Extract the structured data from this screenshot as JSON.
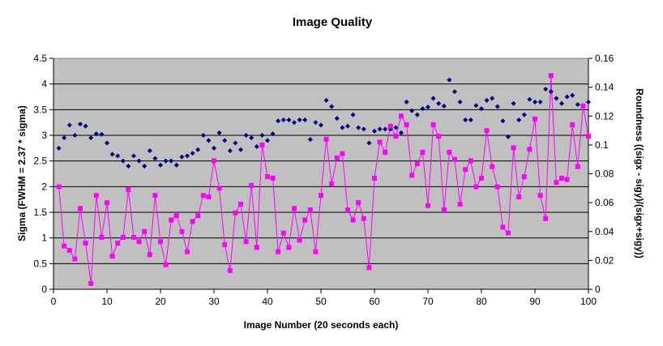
{
  "chart_data": {
    "type": "scatter",
    "title": "Image Quality",
    "xlabel": "Image Number (20 seconds each)",
    "ylabel": "Sigma (FWHM = 2.37 * sigma)",
    "y2label": "Roundness ((sigx - sigy)/(sigx+sigy))",
    "xlim": [
      0,
      100
    ],
    "ylim": [
      0,
      4.5
    ],
    "y2lim": [
      0,
      0.16
    ],
    "x_ticks": [
      0,
      10,
      20,
      30,
      40,
      50,
      60,
      70,
      80,
      90,
      100
    ],
    "y_ticks": [
      0,
      0.5,
      1,
      1.5,
      2,
      2.5,
      3,
      3.5,
      4,
      4.5
    ],
    "y2_ticks": [
      0,
      0.02,
      0.04,
      0.06,
      0.08,
      0.1,
      0.12,
      0.14,
      0.16
    ],
    "y_tick_labels": [
      "0",
      "0.5",
      "1",
      "1.5",
      "2",
      "2.5",
      "3",
      "3.5",
      "4",
      "4.5"
    ],
    "y2_tick_labels": [
      "0",
      "0.02",
      "0.04",
      "0.06",
      "0.08",
      "0.1",
      "0.12",
      "0.14",
      "0.16"
    ],
    "grid": true,
    "plot_background": "#c0c0c0",
    "series": [
      {
        "axis": "left",
        "marker": "diamond",
        "color": "#000080",
        "line": false,
        "points": [
          [
            1,
            2.75
          ],
          [
            2,
            2.95
          ],
          [
            3,
            3.2
          ],
          [
            4,
            3.0
          ],
          [
            5,
            3.22
          ],
          [
            6,
            3.18
          ],
          [
            7,
            2.95
          ],
          [
            8,
            3.03
          ],
          [
            9,
            3.02
          ],
          [
            10,
            2.85
          ],
          [
            11,
            2.63
          ],
          [
            12,
            2.6
          ],
          [
            13,
            2.5
          ],
          [
            14,
            2.4
          ],
          [
            15,
            2.6
          ],
          [
            16,
            2.5
          ],
          [
            17,
            2.4
          ],
          [
            18,
            2.7
          ],
          [
            19,
            2.55
          ],
          [
            20,
            2.42
          ],
          [
            21,
            2.5
          ],
          [
            22,
            2.5
          ],
          [
            23,
            2.42
          ],
          [
            24,
            2.58
          ],
          [
            25,
            2.6
          ],
          [
            26,
            2.65
          ],
          [
            27,
            2.72
          ],
          [
            28,
            3.0
          ],
          [
            29,
            2.9
          ],
          [
            30,
            2.75
          ],
          [
            31,
            3.05
          ],
          [
            32,
            2.9
          ],
          [
            33,
            2.7
          ],
          [
            34,
            2.85
          ],
          [
            35,
            2.72
          ],
          [
            36,
            3.0
          ],
          [
            37,
            2.95
          ],
          [
            38,
            2.78
          ],
          [
            39,
            3.0
          ],
          [
            40,
            2.9
          ],
          [
            41,
            3.03
          ],
          [
            42,
            3.28
          ],
          [
            43,
            3.3
          ],
          [
            44,
            3.3
          ],
          [
            45,
            3.25
          ],
          [
            46,
            3.3
          ],
          [
            47,
            3.3
          ],
          [
            48,
            2.92
          ],
          [
            49,
            3.25
          ],
          [
            50,
            3.2
          ],
          [
            51,
            3.68
          ],
          [
            52,
            3.56
          ],
          [
            53,
            3.33
          ],
          [
            54,
            3.15
          ],
          [
            55,
            3.18
          ],
          [
            56,
            3.4
          ],
          [
            57,
            3.15
          ],
          [
            58,
            3.12
          ],
          [
            59,
            2.85
          ],
          [
            60,
            3.08
          ],
          [
            61,
            3.12
          ],
          [
            62,
            3.12
          ],
          [
            63,
            3.12
          ],
          [
            64,
            3.15
          ],
          [
            65,
            3.05
          ],
          [
            66,
            3.65
          ],
          [
            67,
            3.48
          ],
          [
            68,
            3.4
          ],
          [
            69,
            3.52
          ],
          [
            70,
            3.55
          ],
          [
            71,
            3.72
          ],
          [
            72,
            3.62
          ],
          [
            73,
            3.57
          ],
          [
            74,
            4.08
          ],
          [
            75,
            3.85
          ],
          [
            76,
            3.65
          ],
          [
            77,
            3.3
          ],
          [
            78,
            3.3
          ],
          [
            79,
            3.58
          ],
          [
            80,
            3.52
          ],
          [
            81,
            3.68
          ],
          [
            82,
            3.72
          ],
          [
            83,
            3.56
          ],
          [
            84,
            3.28
          ],
          [
            85,
            2.97
          ],
          [
            86,
            3.62
          ],
          [
            87,
            3.3
          ],
          [
            88,
            3.4
          ],
          [
            89,
            3.7
          ],
          [
            90,
            3.65
          ],
          [
            91,
            3.65
          ],
          [
            92,
            3.9
          ],
          [
            93,
            3.85
          ],
          [
            94,
            3.72
          ],
          [
            95,
            3.62
          ],
          [
            96,
            3.75
          ],
          [
            97,
            3.78
          ],
          [
            98,
            3.6
          ],
          [
            99,
            3.58
          ],
          [
            100,
            3.65
          ]
        ]
      },
      {
        "axis": "right",
        "marker": "square",
        "color": "#ff00ff",
        "line": true,
        "points": [
          [
            1,
            0.071
          ],
          [
            2,
            0.03
          ],
          [
            3,
            0.027
          ],
          [
            4,
            0.021
          ],
          [
            5,
            0.056
          ],
          [
            6,
            0.032
          ],
          [
            7,
            0.004
          ],
          [
            8,
            0.065
          ],
          [
            9,
            0.036
          ],
          [
            10,
            0.06
          ],
          [
            11,
            0.023
          ],
          [
            12,
            0.032
          ],
          [
            13,
            0.036
          ],
          [
            14,
            0.069
          ],
          [
            15,
            0.036
          ],
          [
            16,
            0.033
          ],
          [
            17,
            0.04
          ],
          [
            18,
            0.024
          ],
          [
            19,
            0.065
          ],
          [
            20,
            0.033
          ],
          [
            21,
            0.017
          ],
          [
            22,
            0.048
          ],
          [
            23,
            0.051
          ],
          [
            24,
            0.04
          ],
          [
            25,
            0.026
          ],
          [
            26,
            0.047
          ],
          [
            27,
            0.051
          ],
          [
            28,
            0.065
          ],
          [
            29,
            0.064
          ],
          [
            30,
            0.089
          ],
          [
            31,
            0.07
          ],
          [
            32,
            0.031
          ],
          [
            33,
            0.013
          ],
          [
            34,
            0.053
          ],
          [
            35,
            0.059
          ],
          [
            36,
            0.033
          ],
          [
            37,
            0.072
          ],
          [
            38,
            0.029
          ],
          [
            39,
            0.1
          ],
          [
            40,
            0.078
          ],
          [
            41,
            0.077
          ],
          [
            42,
            0.026
          ],
          [
            43,
            0.039
          ],
          [
            44,
            0.029
          ],
          [
            45,
            0.056
          ],
          [
            46,
            0.034
          ],
          [
            47,
            0.048
          ],
          [
            48,
            0.055
          ],
          [
            49,
            0.026
          ],
          [
            50,
            0.065
          ],
          [
            51,
            0.104
          ],
          [
            52,
            0.073
          ],
          [
            53,
            0.091
          ],
          [
            54,
            0.094
          ],
          [
            55,
            0.055
          ],
          [
            56,
            0.048
          ],
          [
            57,
            0.06
          ],
          [
            58,
            0.049
          ],
          [
            59,
            0.015
          ],
          [
            60,
            0.077
          ],
          [
            61,
            0.102
          ],
          [
            62,
            0.095
          ],
          [
            63,
            0.113
          ],
          [
            64,
            0.106
          ],
          [
            65,
            0.12
          ],
          [
            66,
            0.114
          ],
          [
            67,
            0.079
          ],
          [
            68,
            0.087
          ],
          [
            69,
            0.095
          ],
          [
            70,
            0.058
          ],
          [
            71,
            0.114
          ],
          [
            72,
            0.106
          ],
          [
            73,
            0.055
          ],
          [
            74,
            0.095
          ],
          [
            75,
            0.09
          ],
          [
            76,
            0.059
          ],
          [
            77,
            0.083
          ],
          [
            78,
            0.089
          ],
          [
            79,
            0.071
          ],
          [
            80,
            0.077
          ],
          [
            81,
            0.11
          ],
          [
            82,
            0.085
          ],
          [
            83,
            0.071
          ],
          [
            84,
            0.043
          ],
          [
            85,
            0.039
          ],
          [
            86,
            0.098
          ],
          [
            87,
            0.064
          ],
          [
            88,
            0.078
          ],
          [
            89,
            0.097
          ],
          [
            90,
            0.118
          ],
          [
            91,
            0.065
          ],
          [
            92,
            0.049
          ],
          [
            93,
            0.148
          ],
          [
            94,
            0.074
          ],
          [
            95,
            0.077
          ],
          [
            96,
            0.076
          ],
          [
            97,
            0.114
          ],
          [
            98,
            0.085
          ],
          [
            99,
            0.127
          ],
          [
            100,
            0.106
          ]
        ]
      }
    ]
  }
}
